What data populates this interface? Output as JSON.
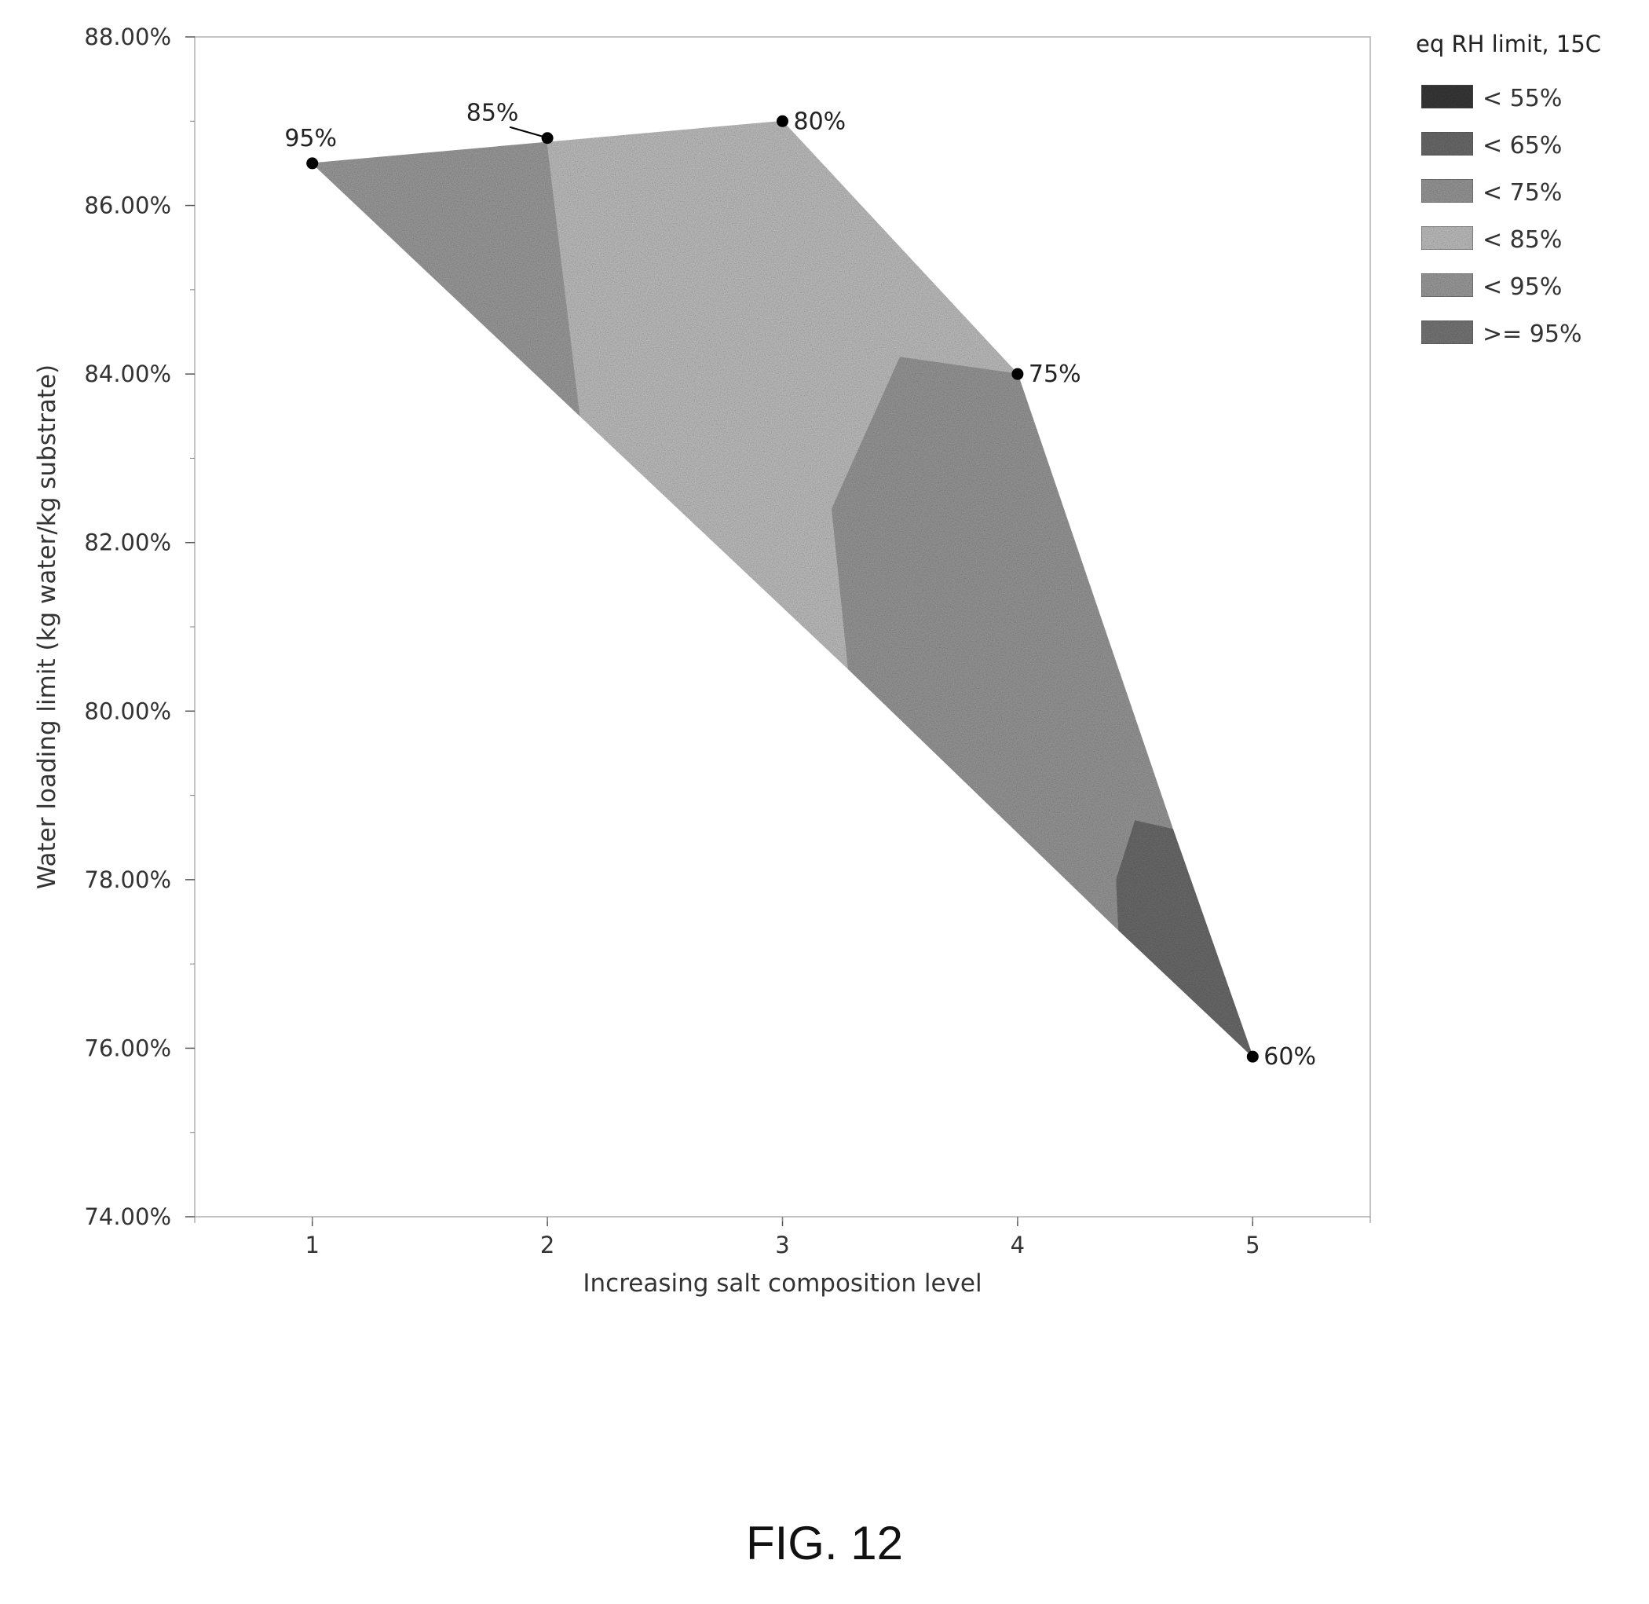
{
  "chart_data": {
    "type": "area",
    "subtype": "contour",
    "xlabel": "Increasing salt composition level",
    "ylabel": "Water loading limit (kg water/kg substrate)",
    "xlim": [
      0.5,
      5.5
    ],
    "ylim": [
      74.0,
      88.0
    ],
    "x_ticks": [
      1,
      2,
      3,
      4,
      5
    ],
    "x_tick_labels": [
      "1",
      "2",
      "3",
      "4",
      "5"
    ],
    "y_ticks": [
      74,
      76,
      78,
      80,
      82,
      84,
      86,
      88
    ],
    "y_tick_labels": [
      "74.00%",
      "76.00%",
      "78.00%",
      "80.00%",
      "82.00%",
      "84.00%",
      "86.00%",
      "88.00%"
    ],
    "grid": false,
    "legend": {
      "title": "eq RH limit, 15C",
      "placement": "right",
      "entries": [
        {
          "label": "< 55%",
          "color": "#3a3a3a"
        },
        {
          "label": "< 65%",
          "color": "#6e6e6e"
        },
        {
          "label": "< 75%",
          "color": "#9c9c9c"
        },
        {
          "label": "< 85%",
          "color": "#c4c4c4"
        },
        {
          "label": "< 95%",
          "color": "#a0a0a0"
        },
        {
          "label": ">= 95%",
          "color": "#7a7a7a"
        }
      ]
    },
    "points": [
      {
        "x": 1,
        "y": 86.5,
        "label": "95%",
        "label_pos": "above"
      },
      {
        "x": 2,
        "y": 86.8,
        "label": "85%",
        "label_pos": "above-left-leader"
      },
      {
        "x": 3,
        "y": 87.0,
        "label": "80%",
        "label_pos": "right"
      },
      {
        "x": 4,
        "y": 84.0,
        "label": "75%",
        "label_pos": "right"
      },
      {
        "x": 5,
        "y": 75.9,
        "label": "60%",
        "label_pos": "right"
      }
    ],
    "regions": [
      {
        "band": "< 95%",
        "color": "#a0a0a0",
        "polygon": [
          [
            1,
            86.5
          ],
          [
            2.0,
            86.75
          ],
          [
            2.14,
            83.5
          ]
        ]
      },
      {
        "band": "< 85%",
        "color": "#c4c4c4",
        "polygon": [
          [
            2.0,
            86.75
          ],
          [
            3.0,
            87.0
          ],
          [
            4.0,
            84.0
          ],
          [
            3.5,
            84.2
          ],
          [
            3.21,
            82.4
          ],
          [
            3.28,
            80.5
          ],
          [
            2.14,
            83.5
          ]
        ]
      },
      {
        "band": "< 75%",
        "color": "#9c9c9c",
        "polygon": [
          [
            3.5,
            84.2
          ],
          [
            4.0,
            84.0
          ],
          [
            4.66,
            78.6
          ],
          [
            4.5,
            78.7
          ],
          [
            4.42,
            78.0
          ],
          [
            4.43,
            77.4
          ],
          [
            3.28,
            80.5
          ],
          [
            3.21,
            82.4
          ]
        ]
      },
      {
        "band": "< 65%",
        "color": "#6e6e6e",
        "polygon": [
          [
            4.5,
            78.7
          ],
          [
            4.66,
            78.6
          ],
          [
            5.0,
            75.9
          ],
          [
            4.43,
            77.4
          ],
          [
            4.42,
            78.0
          ]
        ]
      }
    ]
  },
  "figure_caption": "FIG. 12"
}
